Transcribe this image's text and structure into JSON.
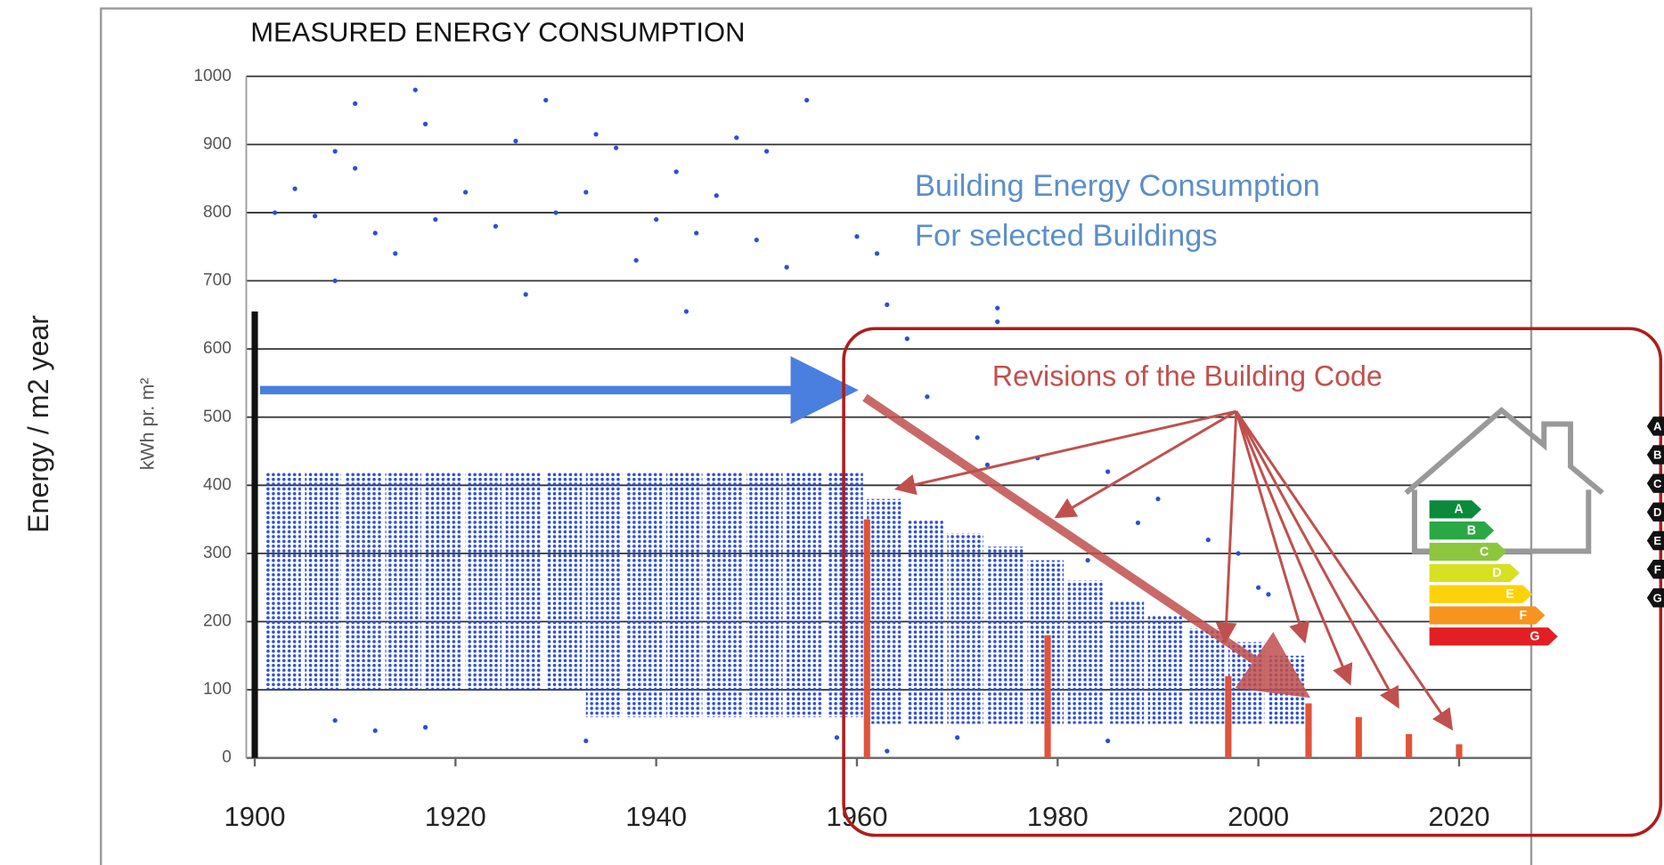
{
  "chart_data": {
    "type": "scatter",
    "title": "MEASURED ENERGY CONSUMPTION",
    "y_label": "kWh pr. m²",
    "outer_label": "Energy / m2 year",
    "annotations": [
      "Building Energy Consumption",
      "For selected Buildings",
      "Revisions of the Building Code"
    ],
    "xlim": [
      1899,
      2027
    ],
    "ylim": [
      0,
      1000
    ],
    "xticks": [
      1900,
      1920,
      1940,
      1960,
      1980,
      2000,
      2020
    ],
    "yticks": [
      0,
      100,
      200,
      300,
      400,
      500,
      600,
      700,
      800,
      900,
      1000
    ],
    "grid": true,
    "points": {
      "color": "#2a4fd8",
      "x": [
        1910,
        1916,
        1917,
        1929,
        1955,
        1934,
        1948,
        1926,
        1908,
        1951,
        1936,
        1910,
        1942,
        1904,
        1921,
        1933,
        1946,
        1930,
        1902,
        1906,
        1918,
        1940,
        1950,
        1960,
        1962,
        1912,
        1924,
        1944,
        1914,
        1938,
        1908,
        1953,
        1927,
        1943,
        1963,
        1974,
        1974,
        1965,
        1967,
        1972,
        1978,
        1985,
        1990,
        1988,
        1995,
        1998,
        2000,
        2001,
        1983,
        1973,
        1908,
        1912,
        1917,
        1933,
        1958,
        1963,
        1970,
        1985
      ],
      "y": [
        960,
        980,
        930,
        965,
        965,
        915,
        910,
        905,
        890,
        890,
        895,
        865,
        860,
        835,
        830,
        830,
        825,
        800,
        800,
        795,
        790,
        790,
        760,
        765,
        740,
        770,
        780,
        770,
        740,
        730,
        700,
        720,
        680,
        655,
        665,
        660,
        640,
        615,
        530,
        470,
        440,
        420,
        380,
        345,
        320,
        300,
        250,
        240,
        290,
        430,
        55,
        40,
        45,
        25,
        30,
        10,
        30,
        25
      ]
    },
    "density": {
      "color": "#2a4fd8",
      "x": [
        1901,
        1905,
        1909,
        1913,
        1917,
        1921,
        1925,
        1929,
        1933,
        1937,
        1941,
        1945,
        1949,
        1953,
        1957,
        1961,
        1965,
        1969,
        1973,
        1977,
        1981,
        1985,
        1989,
        1993,
        1997,
        2001
      ],
      "low": [
        100,
        100,
        100,
        100,
        100,
        100,
        100,
        100,
        60,
        60,
        60,
        60,
        60,
        60,
        60,
        50,
        50,
        50,
        50,
        50,
        50,
        50,
        50,
        50,
        50,
        50
      ],
      "high": [
        420,
        420,
        420,
        420,
        420,
        420,
        420,
        420,
        420,
        420,
        420,
        420,
        420,
        420,
        420,
        380,
        350,
        330,
        310,
        290,
        260,
        230,
        210,
        190,
        170,
        150
      ]
    },
    "code_bars": {
      "color": "#e0533a",
      "x": [
        1961,
        1979,
        1997,
        2005,
        2010,
        2015,
        2020
      ],
      "values": [
        350,
        180,
        120,
        80,
        60,
        35,
        20
      ]
    },
    "start_bar": {
      "color": "#111111",
      "x": 1900,
      "value": 655
    }
  },
  "energy_label": {
    "grades": [
      "A",
      "B",
      "C",
      "D",
      "E",
      "F",
      "G"
    ],
    "colors": [
      "#0a8a3a",
      "#2aa845",
      "#8cc63f",
      "#d7e021",
      "#fdd20a",
      "#f7941d",
      "#e31e24"
    ]
  }
}
